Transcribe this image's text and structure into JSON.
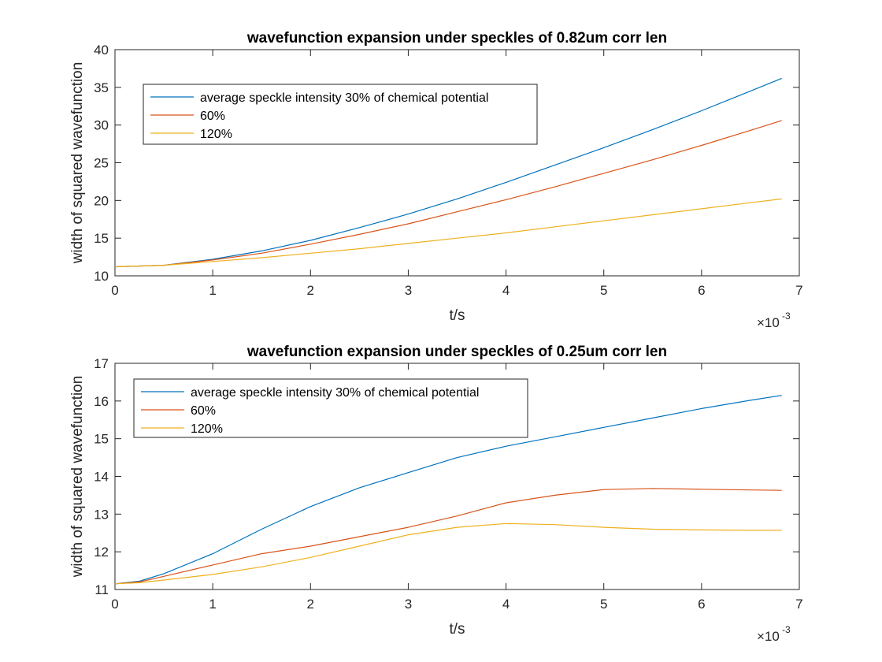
{
  "chart_data": [
    {
      "type": "line",
      "title": "wavefunction expansion under speckles of 0.82um corr len",
      "xlabel": "t/s",
      "ylabel": "width of squared wavefunction",
      "x_multiplier": "×10",
      "x_multiplier_exp": "-3",
      "xlim": [
        0,
        7
      ],
      "ylim": [
        10,
        40
      ],
      "xticks": [
        0,
        1,
        2,
        3,
        4,
        5,
        6,
        7
      ],
      "yticks": [
        10,
        15,
        20,
        25,
        30,
        35,
        40
      ],
      "grid": false,
      "legend_position": "top-left",
      "x": [
        0,
        0.5,
        1.0,
        1.5,
        2.0,
        2.5,
        3.0,
        3.5,
        4.0,
        4.5,
        5.0,
        5.5,
        6.0,
        6.5,
        6.82
      ],
      "series": [
        {
          "name": "average speckle intensity 30% of chemical potential",
          "color": "#0072BD",
          "values": [
            11.2,
            11.4,
            12.2,
            13.3,
            14.7,
            16.4,
            18.2,
            20.2,
            22.4,
            24.7,
            27.0,
            29.4,
            31.9,
            34.5,
            36.2
          ]
        },
        {
          "name": "60%",
          "color": "#D95319",
          "values": [
            11.2,
            11.4,
            12.1,
            13.0,
            14.2,
            15.5,
            16.9,
            18.5,
            20.1,
            21.8,
            23.6,
            25.4,
            27.3,
            29.3,
            30.6
          ]
        },
        {
          "name": "120%",
          "color": "#EDB120",
          "values": [
            11.2,
            11.4,
            11.9,
            12.4,
            13.0,
            13.6,
            14.3,
            15.0,
            15.7,
            16.5,
            17.3,
            18.1,
            18.9,
            19.7,
            20.2
          ]
        }
      ]
    },
    {
      "type": "line",
      "title": "wavefunction expansion under speckles of 0.25um corr len",
      "xlabel": "t/s",
      "ylabel": "width of squared wavefunction",
      "x_multiplier": "×10",
      "x_multiplier_exp": "-3",
      "xlim": [
        0,
        7
      ],
      "ylim": [
        11,
        17
      ],
      "xticks": [
        0,
        1,
        2,
        3,
        4,
        5,
        6,
        7
      ],
      "yticks": [
        11,
        12,
        13,
        14,
        15,
        16,
        17
      ],
      "grid": false,
      "legend_position": "top-left",
      "x": [
        0,
        0.25,
        0.5,
        1.0,
        1.5,
        2.0,
        2.5,
        3.0,
        3.5,
        4.0,
        4.5,
        5.0,
        5.5,
        6.0,
        6.5,
        6.82
      ],
      "series": [
        {
          "name": "average speckle intensity 30% of chemical potential",
          "color": "#0072BD",
          "values": [
            11.15,
            11.22,
            11.42,
            11.95,
            12.6,
            13.2,
            13.7,
            14.1,
            14.5,
            14.8,
            15.05,
            15.3,
            15.55,
            15.8,
            16.02,
            16.15
          ]
        },
        {
          "name": "60%",
          "color": "#D95319",
          "values": [
            11.15,
            11.2,
            11.35,
            11.65,
            11.95,
            12.15,
            12.4,
            12.65,
            12.95,
            13.3,
            13.5,
            13.65,
            13.68,
            13.66,
            13.64,
            13.63
          ]
        },
        {
          "name": "120%",
          "color": "#EDB120",
          "values": [
            11.15,
            11.18,
            11.25,
            11.4,
            11.6,
            11.85,
            12.15,
            12.45,
            12.65,
            12.75,
            12.72,
            12.65,
            12.6,
            12.58,
            12.57,
            12.57
          ]
        }
      ]
    }
  ]
}
